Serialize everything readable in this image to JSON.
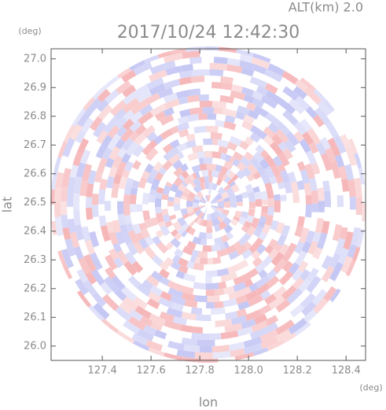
{
  "chart_data": {
    "type": "radar-image",
    "title": "2017/10/24 12:42:30",
    "subtitle": "ALT(km) 2.0",
    "x_label": "lon",
    "y_label": "lat",
    "x_unit": "(deg)",
    "y_unit": "(deg)",
    "xlim": [
      127.19,
      128.48
    ],
    "ylim": [
      25.95,
      27.035
    ],
    "xticks": [
      127.4,
      127.6,
      127.8,
      {
        "value": 128,
        "label": "128.0"
      },
      128.2,
      128.4
    ],
    "yticks": [
      {
        "value": 26,
        "label": "26.0"
      },
      26.1,
      26.2,
      26.3,
      26.4,
      26.5,
      26.6,
      26.7,
      26.8,
      26.9,
      {
        "value": 27,
        "label": "27.0"
      }
    ],
    "colors": [
      "#f6b6b8",
      "#c4c6f4"
    ]
  }
}
